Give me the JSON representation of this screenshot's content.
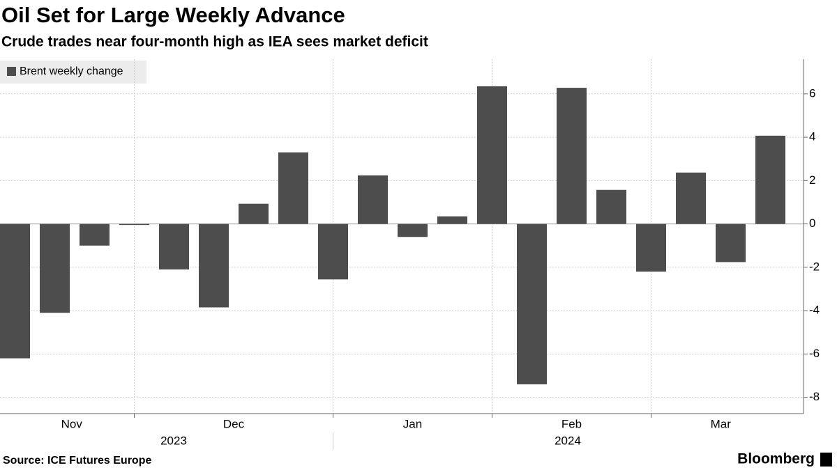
{
  "chart_data": {
    "type": "bar",
    "title": "Oil Set for Large Weekly Advance",
    "subtitle": "Crude trades near four-month high as IEA sees market deficit",
    "legend": "Brent weekly change",
    "color": "#4d4d4d",
    "values": [
      -6.2,
      -4.1,
      -1.0,
      -0.05,
      -2.1,
      -3.85,
      0.93,
      3.3,
      -2.56,
      2.24,
      -0.6,
      0.35,
      6.35,
      -7.4,
      6.28,
      1.57,
      -2.2,
      2.37,
      -1.76,
      4.07
    ],
    "month_labels": [
      "Nov",
      "Dec",
      "Jan",
      "Feb",
      "Mar"
    ],
    "year_labels": [
      "2023",
      "2024"
    ],
    "ylim": [
      -8.75,
      7.6
    ],
    "yticks": [
      -8,
      -6,
      -4,
      -2,
      0,
      2,
      4,
      6
    ],
    "grid": true,
    "source": "Source: ICE Futures Europe",
    "brand": "Bloomberg"
  }
}
